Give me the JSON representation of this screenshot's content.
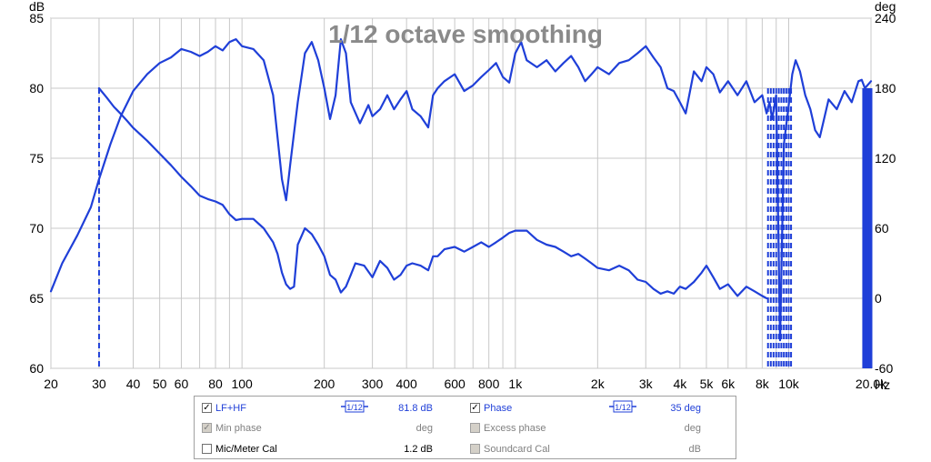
{
  "chart_data": {
    "type": "line",
    "title": "1/12 octave smoothing",
    "x_scale": "log",
    "xlim": [
      20,
      20000
    ],
    "x_unit": "Hz",
    "x_ticks": [
      20,
      30,
      40,
      50,
      60,
      80,
      100,
      200,
      300,
      400,
      600,
      800,
      1000,
      2000,
      3000,
      4000,
      5000,
      6000,
      8000,
      10000,
      20000
    ],
    "x_tick_labels": [
      "20",
      "30",
      "40",
      "50",
      "60",
      "80",
      "100",
      "200",
      "300",
      "400",
      "600",
      "800",
      "1k",
      "2k",
      "3k",
      "4k",
      "5k",
      "6k",
      "8k",
      "10k",
      "20.0k"
    ],
    "y_left": {
      "unit": "dB",
      "lim": [
        60,
        85
      ],
      "ticks": [
        60,
        65,
        70,
        75,
        80,
        85
      ]
    },
    "y_right": {
      "unit": "deg",
      "lim": [
        -60,
        240
      ],
      "ticks": [
        -60,
        0,
        60,
        120,
        180,
        240
      ]
    },
    "grid": true,
    "series": [
      {
        "name": "LF+HF",
        "axis": "left",
        "color": "#1f3fd8",
        "x": [
          20,
          22,
          25,
          28,
          30,
          33,
          36,
          40,
          45,
          50,
          55,
          60,
          65,
          70,
          75,
          80,
          85,
          90,
          95,
          100,
          110,
          120,
          130,
          140,
          145,
          150,
          160,
          170,
          180,
          190,
          200,
          210,
          220,
          230,
          240,
          250,
          270,
          290,
          300,
          320,
          340,
          360,
          380,
          400,
          420,
          450,
          480,
          500,
          520,
          550,
          600,
          650,
          700,
          750,
          800,
          850,
          900,
          950,
          1000,
          1050,
          1100,
          1200,
          1300,
          1400,
          1500,
          1600,
          1700,
          1800,
          1900,
          2000,
          2200,
          2400,
          2600,
          2800,
          3000,
          3200,
          3400,
          3600,
          3800,
          4000,
          4200,
          4500,
          4800,
          5000,
          5300,
          5600,
          6000,
          6500,
          7000,
          7500,
          8000,
          8300,
          8500,
          8700,
          9000,
          9300,
          9600,
          10000,
          10300,
          10600,
          11000,
          11500,
          12000,
          12500,
          13000,
          14000,
          15000,
          16000,
          17000,
          18000,
          18500,
          19000,
          20000
        ],
        "y": [
          65.5,
          67.5,
          69.5,
          71.5,
          73.5,
          76.0,
          78.0,
          79.8,
          81.0,
          81.8,
          82.2,
          82.8,
          82.6,
          82.3,
          82.6,
          83.0,
          82.7,
          83.3,
          83.5,
          83.0,
          82.8,
          82.0,
          79.5,
          73.5,
          72.0,
          74.5,
          79.0,
          82.5,
          83.3,
          82.0,
          80.0,
          77.8,
          79.5,
          83.5,
          82.5,
          79.0,
          77.5,
          78.8,
          78.0,
          78.5,
          79.5,
          78.5,
          79.2,
          79.8,
          78.5,
          78.0,
          77.2,
          79.5,
          80.0,
          80.5,
          81.0,
          79.8,
          80.2,
          80.8,
          81.3,
          81.8,
          80.8,
          80.4,
          82.5,
          83.3,
          82.0,
          81.5,
          82.0,
          81.2,
          81.8,
          82.3,
          81.5,
          80.5,
          81.0,
          81.5,
          81.0,
          81.8,
          82.0,
          82.5,
          83.0,
          82.2,
          81.5,
          80.0,
          79.8,
          79.0,
          78.2,
          81.2,
          80.5,
          81.5,
          81.0,
          79.7,
          80.5,
          79.5,
          80.5,
          79.0,
          79.5,
          78.2,
          79.0,
          77.8,
          79.5,
          62.0,
          76.0,
          78.8,
          81.0,
          82.0,
          81.2,
          79.5,
          78.5,
          77.0,
          76.5,
          79.2,
          78.5,
          79.8,
          79.0,
          80.5,
          80.6,
          80.0,
          80.5
        ]
      },
      {
        "name": "Phase",
        "axis": "right",
        "color": "#1f3fd8",
        "x": [
          30,
          32,
          34,
          36,
          38,
          40,
          45,
          50,
          55,
          60,
          65,
          70,
          75,
          80,
          85,
          90,
          95,
          100,
          110,
          120,
          130,
          135,
          140,
          145,
          150,
          155,
          160,
          170,
          180,
          190,
          200,
          210,
          220,
          230,
          240,
          250,
          260,
          280,
          300,
          320,
          340,
          360,
          380,
          400,
          420,
          450,
          480,
          500,
          520,
          550,
          600,
          650,
          700,
          750,
          800,
          850,
          900,
          950,
          1000,
          1100,
          1200,
          1300,
          1400,
          1500,
          1600,
          1700,
          1800,
          1900,
          2000,
          2200,
          2400,
          2600,
          2800,
          3000,
          3200,
          3400,
          3600,
          3800,
          4000,
          4200,
          4500,
          4800,
          5000,
          5300,
          5600,
          6000,
          6500,
          7000,
          7500,
          8000,
          8300
        ],
        "y": [
          180,
          172,
          164,
          158,
          152,
          146,
          135,
          124,
          114,
          104,
          96,
          88,
          85,
          83,
          80,
          72,
          67,
          68,
          68,
          60,
          48,
          38,
          22,
          12,
          8,
          10,
          46,
          60,
          55,
          46,
          36,
          20,
          16,
          5,
          10,
          20,
          30,
          28,
          18,
          32,
          26,
          16,
          20,
          28,
          30,
          28,
          24,
          36,
          36,
          42,
          44,
          40,
          44,
          48,
          44,
          48,
          52,
          56,
          58,
          58,
          50,
          46,
          44,
          40,
          36,
          38,
          34,
          30,
          26,
          24,
          28,
          24,
          16,
          14,
          8,
          4,
          6,
          4,
          10,
          8,
          14,
          22,
          28,
          18,
          8,
          12,
          2,
          10,
          6,
          2,
          0
        ]
      }
    ]
  },
  "legend": {
    "lf_hf": {
      "label": "LF+HF",
      "value": "81.8 dB",
      "checked": true,
      "smoothing": "1/12"
    },
    "phase": {
      "label": "Phase",
      "value": "35 deg",
      "checked": true,
      "smoothing": "1/12"
    },
    "min_phase": {
      "label": "Min phase",
      "value": "deg",
      "checked": true
    },
    "excess_phase": {
      "label": "Excess phase",
      "value": "deg",
      "checked": false
    },
    "mic_cal": {
      "label": "Mic/Meter Cal",
      "value": "1.2 dB",
      "checked": false
    },
    "soundcard_cal": {
      "label": "Soundcard Cal",
      "value": "dB",
      "checked": false
    }
  },
  "colors": {
    "trace": "#1f3fd8",
    "grid": "#c8c8c8",
    "title": "#8a8a8a"
  }
}
